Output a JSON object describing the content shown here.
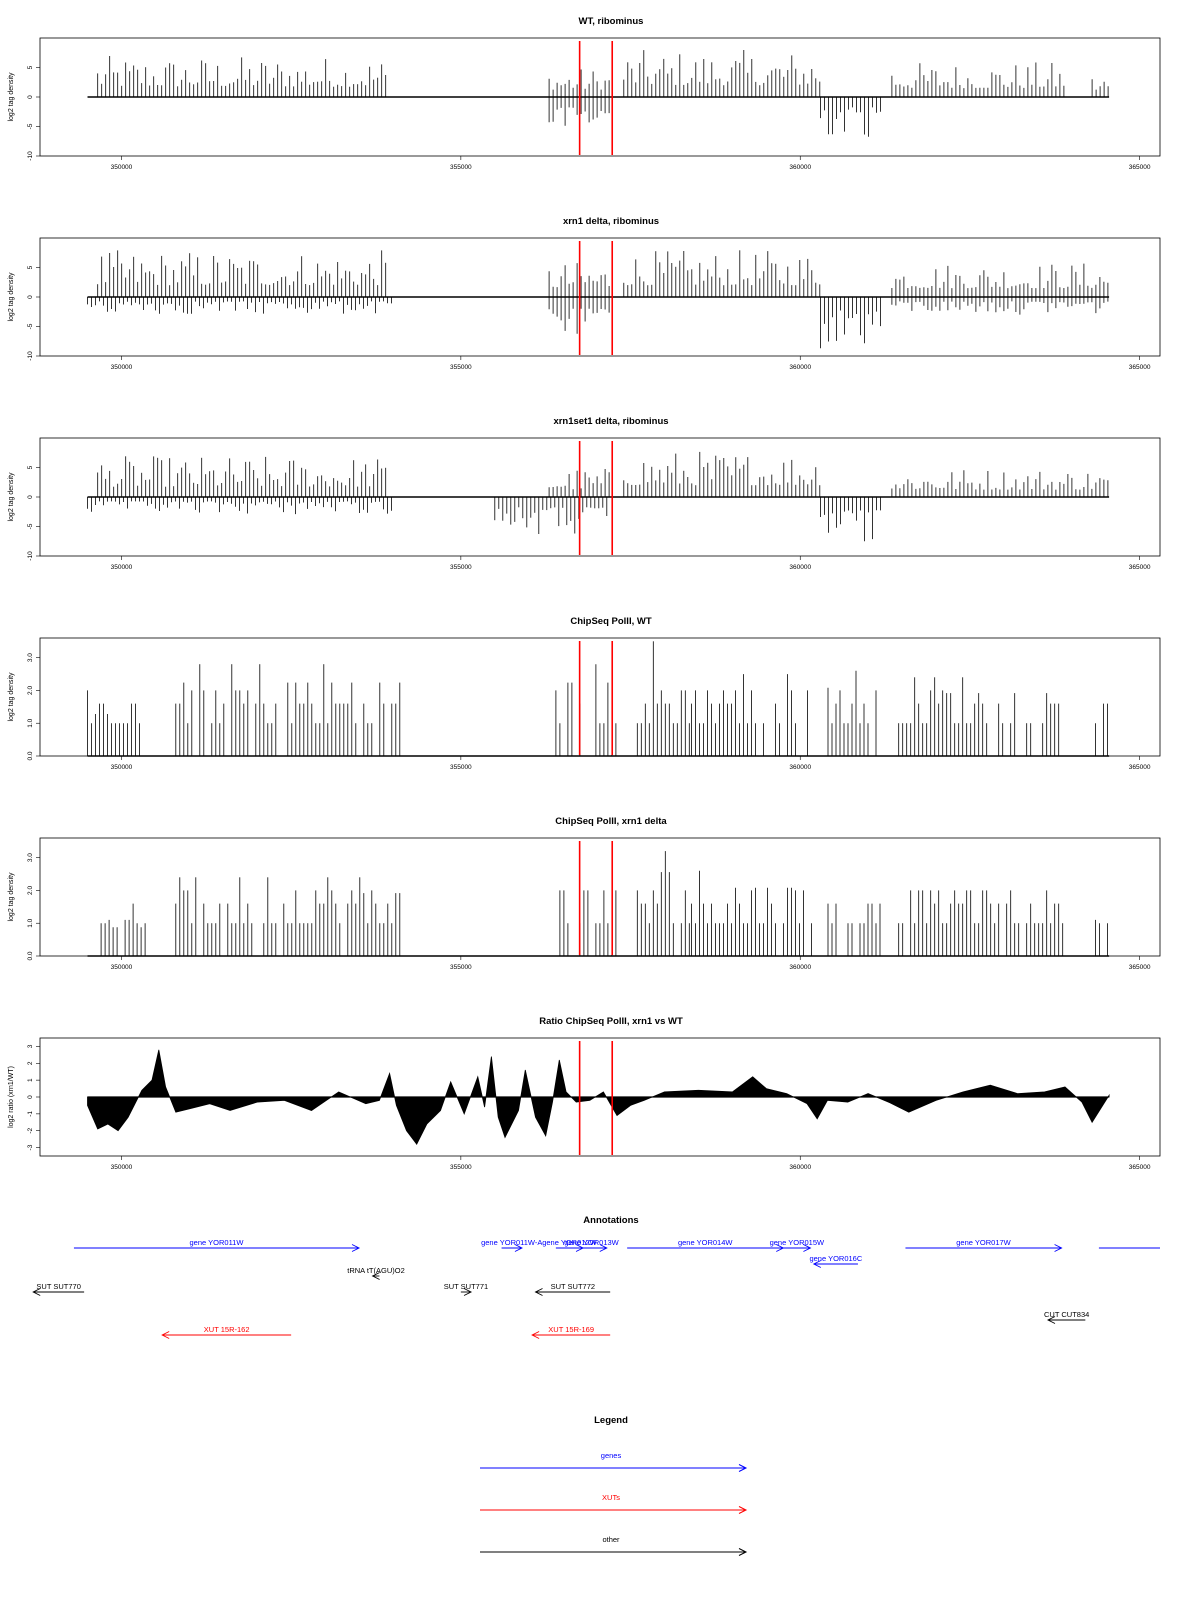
{
  "colors": {
    "gene": "#0000ff",
    "xut": "#ff0000",
    "other": "#000000",
    "marker": "#ff0000",
    "data": "#000000"
  },
  "chart_data": [
    {
      "type": "bar",
      "title": "WT, ribominus",
      "ylabel": "log2 tag density",
      "xlim": [
        348800,
        365300
      ],
      "ylim": [
        -10,
        10
      ],
      "xticks": [
        350000,
        355000,
        360000,
        365000
      ],
      "yticks": [
        -10,
        -5,
        0,
        5
      ],
      "markers_x": [
        356750,
        357230
      ],
      "positive_segments": [
        {
          "x": [
            349650,
            353950
          ],
          "max": 7
        },
        {
          "x": [
            356300,
            357200
          ],
          "max": 5
        },
        {
          "x": [
            357400,
            360300
          ],
          "max": 8
        },
        {
          "x": [
            361350,
            363900
          ],
          "max": 6
        },
        {
          "x": [
            364300,
            364550
          ],
          "max": 4
        }
      ],
      "negative_segments": [
        {
          "x": [
            356300,
            357200
          ],
          "min": -7
        },
        {
          "x": [
            360300,
            361200
          ],
          "min": -7
        }
      ],
      "baseline": [
        349500,
        364550
      ]
    },
    {
      "type": "bar",
      "title": "xrn1 delta, ribominus",
      "ylabel": "log2 tag density",
      "xlim": [
        348800,
        365300
      ],
      "ylim": [
        -10,
        10
      ],
      "xticks": [
        350000,
        355000,
        360000,
        365000
      ],
      "yticks": [
        -10,
        -5,
        0,
        5
      ],
      "markers_x": [
        356750,
        357230
      ],
      "positive_segments": [
        {
          "x": [
            349650,
            353950
          ],
          "max": 8
        },
        {
          "x": [
            356300,
            357200
          ],
          "max": 6
        },
        {
          "x": [
            357400,
            360300
          ],
          "max": 8
        },
        {
          "x": [
            361350,
            364550
          ],
          "max": 6
        }
      ],
      "negative_segments": [
        {
          "x": [
            349500,
            354000
          ],
          "min": -3
        },
        {
          "x": [
            356300,
            357200
          ],
          "min": -8
        },
        {
          "x": [
            360300,
            361200
          ],
          "min": -9
        },
        {
          "x": [
            361350,
            364550
          ],
          "min": -3
        }
      ],
      "baseline": [
        349500,
        364550
      ]
    },
    {
      "type": "bar",
      "title": "xrn1set1 delta, ribominus",
      "ylabel": "log2 tag density",
      "xlim": [
        348800,
        365300
      ],
      "ylim": [
        -10,
        10
      ],
      "xticks": [
        350000,
        355000,
        360000,
        365000
      ],
      "yticks": [
        -10,
        -5,
        0,
        5
      ],
      "markers_x": [
        356750,
        357230
      ],
      "positive_segments": [
        {
          "x": [
            349650,
            353950
          ],
          "max": 7
        },
        {
          "x": [
            356300,
            357200
          ],
          "max": 5
        },
        {
          "x": [
            357400,
            360300
          ],
          "max": 8
        },
        {
          "x": [
            361350,
            364550
          ],
          "max": 5
        }
      ],
      "negative_segments": [
        {
          "x": [
            349500,
            354000
          ],
          "min": -3
        },
        {
          "x": [
            355500,
            357200
          ],
          "min": -7
        },
        {
          "x": [
            360300,
            361200
          ],
          "min": -9
        }
      ],
      "baseline": [
        349500,
        364550
      ]
    },
    {
      "type": "bar",
      "title": "ChipSeq PolII, WT",
      "ylabel": "log2 tag density",
      "xlim": [
        348800,
        365300
      ],
      "ylim": [
        0,
        3.6
      ],
      "xticks": [
        350000,
        355000,
        360000,
        365000
      ],
      "yticks": [
        0.0,
        1.0,
        2.0,
        3.0
      ],
      "ytick_labels": [
        "0.0",
        "1.0",
        "2.0",
        "3.0"
      ],
      "markers_x": [
        356750,
        357230
      ],
      "positive_segments": [
        {
          "x": [
            349500,
            350300
          ],
          "max": 1.6
        },
        {
          "x": [
            350800,
            354100
          ],
          "max": 2.8
        },
        {
          "x": [
            356400,
            357300
          ],
          "max": 2.8
        },
        {
          "x": [
            357600,
            358400
          ],
          "max": 3.5
        },
        {
          "x": [
            358400,
            360200
          ],
          "max": 2.5
        },
        {
          "x": [
            360350,
            361200
          ],
          "max": 2.6
        },
        {
          "x": [
            361450,
            363900
          ],
          "max": 2.4
        },
        {
          "x": [
            364350,
            364550
          ],
          "max": 2.0
        }
      ],
      "negative_segments": [],
      "baseline": [
        349500,
        364550
      ]
    },
    {
      "type": "bar",
      "title": "ChipSeq PolII, xrn1 delta",
      "ylabel": "log2 tag density",
      "xlim": [
        348800,
        365300
      ],
      "ylim": [
        0,
        3.6
      ],
      "xticks": [
        350000,
        355000,
        360000,
        365000
      ],
      "yticks": [
        0.0,
        1.0,
        2.0,
        3.0
      ],
      "ytick_labels": [
        "0.0",
        "1.0",
        "2.0",
        "3.0"
      ],
      "markers_x": [
        356750,
        357230
      ],
      "positive_segments": [
        {
          "x": [
            349700,
            350400
          ],
          "max": 1.1
        },
        {
          "x": [
            350800,
            354100
          ],
          "max": 2.4
        },
        {
          "x": [
            356400,
            357300
          ],
          "max": 2.5
        },
        {
          "x": [
            357600,
            358400
          ],
          "max": 3.2
        },
        {
          "x": [
            358400,
            360200
          ],
          "max": 2.6
        },
        {
          "x": [
            360350,
            361200
          ],
          "max": 2.0
        },
        {
          "x": [
            361450,
            363900
          ],
          "max": 2.0
        },
        {
          "x": [
            364350,
            364550
          ],
          "max": 1.1
        }
      ],
      "negative_segments": [],
      "baseline": [
        349500,
        364550
      ]
    },
    {
      "type": "area",
      "title": "Ratio ChipSeq PolII, xrn1 vs WT",
      "ylabel": "log2 ratio (xrn1/WT)",
      "xlim": [
        348800,
        365300
      ],
      "ylim": [
        -3.5,
        3.5
      ],
      "xticks": [
        350000,
        355000,
        360000,
        365000
      ],
      "yticks": [
        -3,
        -2,
        -1,
        0,
        1,
        2,
        3
      ],
      "markers_x": [
        356750,
        357230
      ],
      "x": [
        349500,
        349650,
        349800,
        349950,
        350100,
        350300,
        350450,
        350550,
        350650,
        350800,
        351000,
        351300,
        351600,
        352000,
        352400,
        352800,
        353200,
        353600,
        353800,
        353950,
        354050,
        354200,
        354350,
        354500,
        354700,
        354850,
        355050,
        355250,
        355350,
        355450,
        355550,
        355650,
        355850,
        355950,
        356100,
        356250,
        356350,
        356450,
        356550,
        356700,
        356900,
        357100,
        357300,
        357500,
        357700,
        358000,
        358500,
        359000,
        359300,
        359500,
        359800,
        360100,
        360250,
        360400,
        360700,
        361000,
        361300,
        361600,
        362000,
        362400,
        362800,
        363200,
        363600,
        363900,
        364150,
        364300,
        364550
      ],
      "y": [
        -0.5,
        -1.9,
        -1.6,
        -2.0,
        -1.2,
        0.4,
        1.0,
        2.8,
        0.6,
        -0.9,
        -0.7,
        -0.4,
        -0.8,
        -0.3,
        -0.2,
        -0.8,
        0.3,
        -0.4,
        -0.2,
        1.4,
        -0.5,
        -2.0,
        -2.8,
        -1.6,
        -0.8,
        0.9,
        -1.0,
        1.2,
        -0.6,
        2.4,
        -1.2,
        -2.4,
        -0.8,
        1.6,
        -1.2,
        -2.3,
        -0.3,
        2.2,
        0.3,
        -0.3,
        -0.2,
        0.3,
        -1.1,
        -0.5,
        -0.2,
        0.3,
        0.4,
        0.3,
        1.2,
        0.5,
        0.2,
        -0.4,
        -1.3,
        -0.2,
        -0.3,
        0.2,
        -0.3,
        -0.9,
        -0.2,
        0.3,
        0.7,
        0.2,
        0.3,
        0.6,
        -0.3,
        -1.5,
        0.1
      ]
    }
  ],
  "annotations": {
    "title": "Annotations",
    "items": [
      {
        "label": "gene YOR011W",
        "kind": "gene",
        "x1": 349300,
        "x2": 353500,
        "row": 0
      },
      {
        "label": "gene YOR011W-A",
        "kind": "gene",
        "x1": 355600,
        "x2": 355900,
        "row": 0
      },
      {
        "label": "gene YOR012W",
        "kind": "gene",
        "x1": 356400,
        "x2": 356800,
        "row": 0
      },
      {
        "label": "gene YOR013W",
        "kind": "gene",
        "x1": 356700,
        "x2": 357150,
        "row": 0
      },
      {
        "label": "gene YOR014W",
        "kind": "gene",
        "x1": 357450,
        "x2": 359750,
        "row": 0
      },
      {
        "label": "gene YOR015W",
        "kind": "gene",
        "x1": 359750,
        "x2": 360150,
        "row": 0
      },
      {
        "label": "gene YOR016C",
        "kind": "gene",
        "x1": 360850,
        "x2": 360200,
        "row": 1
      },
      {
        "label": "gene YOR017W",
        "kind": "gene",
        "x1": 361550,
        "x2": 363850,
        "row": 0
      },
      {
        "label": "",
        "kind": "gene",
        "x1": 364400,
        "x2": 365300,
        "row": 0
      },
      {
        "label": "tRNA tT(AGU)O2",
        "kind": "other",
        "x1": 353800,
        "x2": 353700,
        "row": 2
      },
      {
        "label": "SUT SUT770",
        "kind": "other",
        "x1": 349450,
        "x2": 348700,
        "row": 3
      },
      {
        "label": "SUT SUT771",
        "kind": "other",
        "x1": 355000,
        "x2": 355150,
        "row": 3
      },
      {
        "label": "SUT SUT772",
        "kind": "other",
        "x1": 357200,
        "x2": 356100,
        "row": 3
      },
      {
        "label": "CUT CUT834",
        "kind": "other",
        "x1": 364200,
        "x2": 363650,
        "row": 4
      },
      {
        "label": "XUT 15R-162",
        "kind": "xut",
        "x1": 352500,
        "x2": 350600,
        "row": 5
      },
      {
        "label": "XUT 15R-169",
        "kind": "xut",
        "x1": 357200,
        "x2": 356050,
        "row": 5
      }
    ]
  },
  "legend": {
    "title": "Legend",
    "items": [
      {
        "label": "genes",
        "kind": "gene"
      },
      {
        "label": "XUTs",
        "kind": "xut"
      },
      {
        "label": "other",
        "kind": "other"
      }
    ]
  }
}
